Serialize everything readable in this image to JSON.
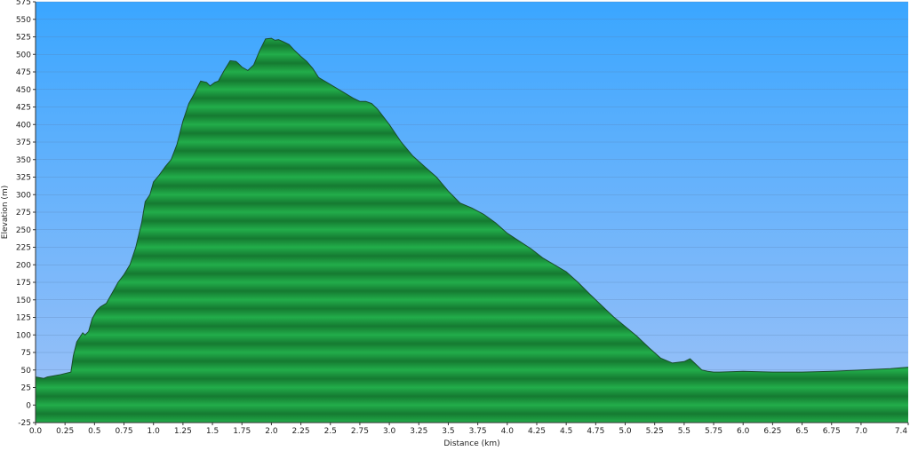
{
  "chart_data": {
    "type": "area",
    "title": "",
    "xlabel": "Distance   (km)",
    "ylabel": "Elevation (m)",
    "xlim": [
      0,
      7.4
    ],
    "ylim": [
      -25,
      575
    ],
    "x_ticks": [
      0,
      0.25,
      0.5,
      0.75,
      1,
      1.25,
      1.5,
      1.75,
      2,
      2.25,
      2.5,
      2.75,
      3,
      3.25,
      3.5,
      3.75,
      4,
      4.25,
      4.5,
      4.75,
      5,
      5.25,
      5.5,
      5.75,
      6,
      6.25,
      6.5,
      6.75,
      7,
      7.4
    ],
    "x_tick_labels": [
      "0.0",
      "0.25",
      "0.5",
      "0.75",
      "1.0",
      "1.25",
      "1.5",
      "1.75",
      "2.0",
      "2.25",
      "2.5",
      "2.75",
      "3.0",
      "3.25",
      "3.5",
      "3.75",
      "4.0",
      "4.25",
      "4.5",
      "4.75",
      "5.0",
      "5.25",
      "5.5",
      "5.75",
      "6.0",
      "6.25",
      "6.5",
      "6.75",
      "7.0",
      "7.4"
    ],
    "y_ticks": [
      -25,
      0,
      25,
      50,
      75,
      100,
      125,
      150,
      175,
      200,
      225,
      250,
      275,
      300,
      325,
      350,
      375,
      400,
      425,
      450,
      475,
      500,
      525,
      550,
      575
    ],
    "y_tick_labels": [
      "-25",
      "0",
      "25",
      "50",
      "75",
      "100",
      "125",
      "150",
      "175",
      "200",
      "225",
      "250",
      "275",
      "300",
      "325",
      "350",
      "375",
      "400",
      "425",
      "450",
      "475",
      "500",
      "525",
      "550",
      "575"
    ],
    "grid": true,
    "colors": {
      "sky_top": "#3aa6ff",
      "sky_bottom": "#9fc2f7",
      "fill_light": "#22ad4a",
      "fill_dark": "#157a31",
      "outline": "#1a4d2a",
      "grid": "#5a7fae"
    },
    "series": [
      {
        "x": [
          0,
          0.07,
          0.1,
          0.2,
          0.3,
          0.32,
          0.35,
          0.4,
          0.42,
          0.45,
          0.48,
          0.52,
          0.55,
          0.6,
          0.65,
          0.7,
          0.75,
          0.8,
          0.85,
          0.9,
          0.93,
          0.95,
          0.97,
          1.0,
          1.05,
          1.1,
          1.15,
          1.2,
          1.25,
          1.3,
          1.35,
          1.4,
          1.45,
          1.48,
          1.52,
          1.55,
          1.6,
          1.65,
          1.7,
          1.72,
          1.75,
          1.8,
          1.85,
          1.9,
          1.95,
          2.0,
          2.03,
          2.06,
          2.1,
          2.15,
          2.2,
          2.25,
          2.3,
          2.35,
          2.4,
          2.5,
          2.6,
          2.7,
          2.75,
          2.8,
          2.85,
          2.9,
          3.0,
          3.1,
          3.2,
          3.3,
          3.4,
          3.5,
          3.6,
          3.7,
          3.8,
          3.9,
          4.0,
          4.1,
          4.2,
          4.3,
          4.4,
          4.5,
          4.6,
          4.7,
          4.8,
          4.9,
          5.0,
          5.1,
          5.2,
          5.3,
          5.4,
          5.5,
          5.55,
          5.6,
          5.65,
          5.7,
          5.75,
          5.8,
          6.0,
          6.25,
          6.5,
          6.75,
          7.0,
          7.25,
          7.4
        ],
        "y": [
          40,
          38,
          40,
          43,
          47,
          70,
          90,
          103,
          100,
          105,
          123,
          135,
          140,
          145,
          160,
          175,
          186,
          200,
          225,
          260,
          290,
          295,
          300,
          318,
          328,
          340,
          350,
          372,
          405,
          430,
          445,
          462,
          460,
          455,
          460,
          462,
          477,
          491,
          490,
          487,
          482,
          477,
          485,
          505,
          522,
          523,
          520,
          521,
          518,
          514,
          505,
          497,
          490,
          480,
          467,
          457,
          447,
          437,
          433,
          433,
          430,
          422,
          400,
          375,
          355,
          340,
          325,
          305,
          288,
          281,
          272,
          260,
          245,
          234,
          223,
          210,
          200,
          190,
          175,
          158,
          142,
          126,
          112,
          98,
          82,
          67,
          60,
          62,
          66,
          58,
          50,
          48,
          47,
          47,
          48,
          47,
          47,
          48,
          50,
          52,
          54
        ]
      }
    ]
  }
}
